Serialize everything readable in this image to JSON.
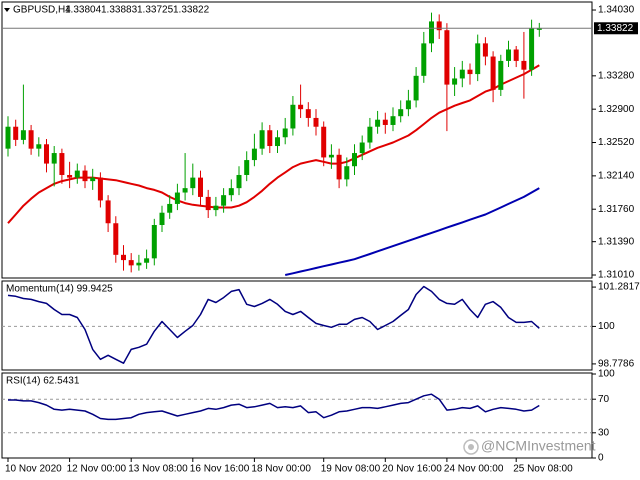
{
  "chart_data": [
    {
      "type": "candlestick",
      "title": "GBPUSD,H4",
      "categories": [
        "10 Nov 2020",
        null,
        null,
        null,
        null,
        null,
        null,
        null,
        "12 Nov 00:00",
        null,
        null,
        null,
        null,
        null,
        null,
        null,
        "13 Nov 08:00",
        null,
        null,
        null,
        null,
        null,
        null,
        null,
        "16 Nov 16:00",
        null,
        null,
        null,
        null,
        null,
        null,
        null,
        "18 Nov 00:00",
        null,
        null,
        null,
        null,
        null,
        null,
        null,
        null,
        "19 Nov 08:00",
        null,
        null,
        null,
        null,
        null,
        null,
        null,
        "20 Nov 16:00",
        null,
        null,
        null,
        null,
        null,
        null,
        null,
        "24 Nov 00:00",
        null,
        null,
        null,
        null,
        null,
        null,
        null,
        null,
        "25 Nov 08:00",
        null,
        null,
        null
      ],
      "open": [
        1.3245,
        1.327,
        1.3255,
        1.3266,
        1.3245,
        1.325,
        1.3228,
        1.324,
        1.3215,
        1.3212,
        1.322,
        1.3208,
        1.3212,
        1.3186,
        1.316,
        1.3124,
        1.3118,
        1.3112,
        1.3115,
        1.312,
        1.3158,
        1.3172,
        1.3182,
        1.3195,
        1.32,
        1.3212,
        1.319,
        1.3175,
        1.318,
        1.3192,
        1.32,
        1.3215,
        1.3232,
        1.3245,
        1.3266,
        1.3248,
        1.3258,
        1.3268,
        1.3295,
        1.329,
        1.328,
        1.327,
        1.3235,
        1.3238,
        1.321,
        1.3225,
        1.324,
        1.3252,
        1.327,
        1.3278,
        1.3272,
        1.3282,
        1.329,
        1.33,
        1.3328,
        1.3365,
        1.339,
        1.338,
        1.3318,
        1.3325,
        1.3335,
        1.333,
        1.3365,
        1.335,
        1.3312,
        1.3345,
        1.3358,
        1.3345,
        1.3335,
        1.33804
      ],
      "high": [
        1.3282,
        1.3278,
        1.3318,
        1.3272,
        1.3258,
        1.3256,
        1.3248,
        1.3245,
        1.323,
        1.3228,
        1.3226,
        1.3222,
        1.3218,
        1.3192,
        1.3168,
        1.3135,
        1.3126,
        1.3124,
        1.313,
        1.3165,
        1.318,
        1.3192,
        1.3205,
        1.324,
        1.3228,
        1.322,
        1.3198,
        1.319,
        1.32,
        1.321,
        1.3225,
        1.3242,
        1.3262,
        1.3275,
        1.3272,
        1.3266,
        1.328,
        1.3305,
        1.3318,
        1.3298,
        1.329,
        1.3276,
        1.325,
        1.3245,
        1.3235,
        1.325,
        1.326,
        1.328,
        1.3288,
        1.3286,
        1.3292,
        1.33,
        1.3312,
        1.3338,
        1.3378,
        1.34,
        1.3398,
        1.3388,
        1.3338,
        1.3345,
        1.3342,
        1.3375,
        1.3372,
        1.3356,
        1.3352,
        1.3368,
        1.3362,
        1.3378,
        1.3392,
        1.33883
      ],
      "low": [
        1.3236,
        1.3248,
        1.325,
        1.3238,
        1.3236,
        1.3218,
        1.3202,
        1.3205,
        1.32,
        1.3205,
        1.32,
        1.3198,
        1.3178,
        1.315,
        1.3115,
        1.3106,
        1.3104,
        1.3106,
        1.3108,
        1.3112,
        1.315,
        1.3165,
        1.3175,
        1.3186,
        1.3192,
        1.318,
        1.3166,
        1.3168,
        1.3172,
        1.3185,
        1.3192,
        1.3208,
        1.3225,
        1.3238,
        1.324,
        1.324,
        1.325,
        1.326,
        1.328,
        1.327,
        1.326,
        1.3225,
        1.3222,
        1.32,
        1.3202,
        1.3215,
        1.3232,
        1.3245,
        1.3262,
        1.3262,
        1.3265,
        1.3275,
        1.3282,
        1.3292,
        1.332,
        1.3355,
        1.337,
        1.3265,
        1.3305,
        1.3315,
        1.3318,
        1.3322,
        1.334,
        1.3298,
        1.3305,
        1.3338,
        1.3338,
        1.3302,
        1.3328,
        1.33725
      ],
      "close": [
        1.327,
        1.3255,
        1.3266,
        1.3245,
        1.325,
        1.3228,
        1.324,
        1.3215,
        1.3212,
        1.322,
        1.3208,
        1.3212,
        1.3186,
        1.316,
        1.3124,
        1.3118,
        1.3112,
        1.3115,
        1.312,
        1.3158,
        1.3172,
        1.3182,
        1.3195,
        1.32,
        1.3212,
        1.319,
        1.3175,
        1.318,
        1.3192,
        1.32,
        1.3215,
        1.3232,
        1.3245,
        1.3266,
        1.3248,
        1.3258,
        1.3268,
        1.3295,
        1.329,
        1.328,
        1.327,
        1.3235,
        1.3238,
        1.321,
        1.3225,
        1.324,
        1.3252,
        1.327,
        1.3278,
        1.3272,
        1.3282,
        1.329,
        1.33,
        1.3328,
        1.3365,
        1.339,
        1.338,
        1.3318,
        1.3325,
        1.3335,
        1.333,
        1.3365,
        1.335,
        1.3312,
        1.3345,
        1.3358,
        1.3345,
        1.3335,
        1.3382,
        1.33822
      ],
      "up_color": "#00a000",
      "down_color": "#e00000",
      "overlays": [
        {
          "color": "#e00000",
          "values": [
            1.316,
            1.317,
            1.318,
            1.3188,
            1.3195,
            1.32,
            1.3205,
            1.3208,
            1.321,
            1.3212,
            1.3212,
            1.3212,
            1.3211,
            1.321,
            1.3209,
            1.3207,
            1.3205,
            1.3203,
            1.32,
            1.3198,
            1.3195,
            1.319,
            1.3186,
            1.3183,
            1.3181,
            1.318,
            1.3179,
            1.3178,
            1.3178,
            1.3178,
            1.318,
            1.3184,
            1.319,
            1.3197,
            1.3205,
            1.3212,
            1.3218,
            1.3224,
            1.3228,
            1.323,
            1.3232,
            1.323,
            1.3228,
            1.3228,
            1.323,
            1.3234,
            1.3238,
            1.3242,
            1.3246,
            1.3249,
            1.3252,
            1.3256,
            1.326,
            1.3266,
            1.3273,
            1.328,
            1.3286,
            1.329,
            1.3294,
            1.3297,
            1.33,
            1.3305,
            1.331,
            1.3313,
            1.3318,
            1.3322,
            1.3326,
            1.333,
            1.3335,
            1.334
          ]
        },
        {
          "color": "#0000b0",
          "values": [
            null,
            null,
            null,
            null,
            null,
            null,
            null,
            null,
            null,
            null,
            null,
            null,
            null,
            null,
            null,
            null,
            null,
            null,
            null,
            null,
            null,
            null,
            null,
            null,
            null,
            null,
            null,
            null,
            null,
            null,
            null,
            null,
            null,
            null,
            null,
            null,
            1.3101,
            1.3103,
            1.3105,
            1.3107,
            1.3109,
            1.3111,
            1.3113,
            1.3115,
            1.3117,
            1.3119,
            1.3122,
            1.3125,
            1.3128,
            1.3131,
            1.3134,
            1.3137,
            1.314,
            1.3143,
            1.3146,
            1.3149,
            1.3152,
            1.3155,
            1.3158,
            1.3161,
            1.3164,
            1.3167,
            1.317,
            1.3174,
            1.3178,
            1.3182,
            1.3186,
            1.319,
            1.3195,
            1.32
          ]
        }
      ],
      "ylim": [
        1.30976,
        1.3411
      ],
      "yticks": [
        {
          "value": 1.3403,
          "label": "1.34030"
        },
        {
          "value": 1.3328,
          "label": "1.33280"
        },
        {
          "value": 1.329,
          "label": "1.32900"
        },
        {
          "value": 1.3252,
          "label": "1.32520"
        },
        {
          "value": 1.3214,
          "label": "1.32140"
        },
        {
          "value": 1.3176,
          "label": "1.31760"
        },
        {
          "value": 1.3139,
          "label": "1.31390"
        },
        {
          "value": 1.3101,
          "label": "1.31010"
        }
      ],
      "watermark": "@NCMInvestment"
    },
    {
      "type": "line",
      "title": "Momentum(14) 99.9425",
      "color": "#000080",
      "values": [
        101.01,
        100.98,
        100.91,
        100.88,
        100.81,
        100.75,
        100.55,
        100.39,
        100.39,
        100.29,
        99.9,
        99.25,
        98.93,
        99.06,
        98.93,
        98.8,
        99.25,
        99.32,
        99.42,
        99.84,
        100.16,
        99.9,
        99.64,
        99.84,
        100.03,
        100.39,
        100.88,
        100.78,
        100.94,
        101.14,
        101.2,
        100.72,
        100.65,
        100.75,
        100.88,
        100.72,
        100.49,
        100.39,
        100.49,
        100.29,
        100.1,
        100.03,
        99.97,
        100.07,
        100.07,
        100.23,
        100.29,
        100.16,
        99.9,
        100.03,
        100.16,
        100.36,
        100.55,
        101.04,
        101.3,
        101.14,
        100.88,
        100.75,
        100.72,
        100.88,
        100.55,
        100.29,
        100.72,
        100.81,
        100.62,
        100.29,
        100.13,
        100.13,
        100.16,
        99.94
      ],
      "ylim": [
        98.58,
        101.48
      ],
      "yticks": [
        101.2817,
        100,
        98.7786
      ],
      "level_lines": [
        100
      ]
    },
    {
      "type": "line",
      "title": "RSI(14) 62.5431",
      "color": "#000080",
      "values": [
        69,
        69,
        68,
        68,
        66,
        63,
        58,
        57,
        58,
        57,
        56,
        52,
        47,
        46,
        46,
        47,
        48,
        52,
        54,
        55,
        56,
        53,
        50,
        52,
        54,
        56,
        59,
        58,
        60,
        63,
        64,
        60,
        61,
        63,
        65,
        60,
        61,
        60,
        62,
        54,
        55,
        48,
        51,
        55,
        56,
        58,
        60,
        60,
        59,
        61,
        63,
        65,
        66,
        70,
        74,
        76,
        70,
        57,
        58,
        60,
        59,
        62,
        55,
        58,
        60,
        59,
        58,
        56,
        57,
        62.54
      ],
      "ylim": [
        0,
        100
      ],
      "yticks": [
        100,
        70,
        30,
        0
      ],
      "level_lines": [
        70,
        30
      ]
    }
  ]
}
